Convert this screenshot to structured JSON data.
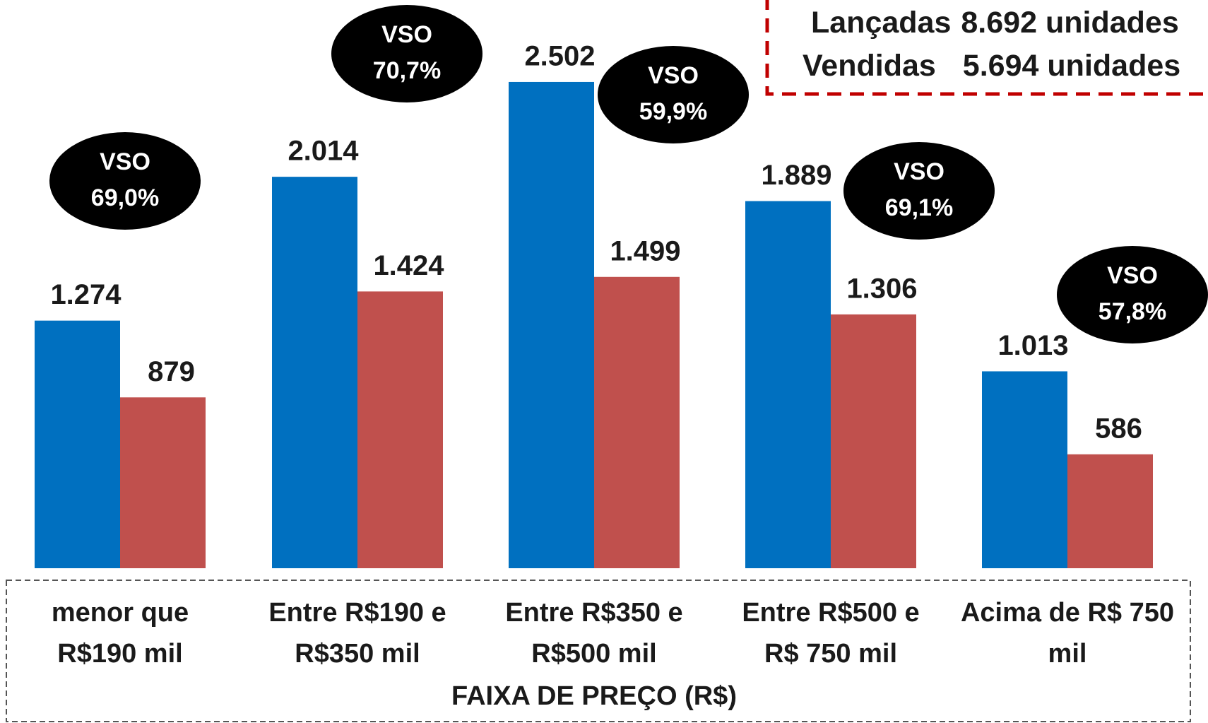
{
  "chart_data": {
    "type": "bar",
    "xlabel": "FAIXA DE PREÇO (R$)",
    "categories": [
      "menor que\nR$190 mil",
      "Entre R$190 e\nR$350 mil",
      "Entre R$350 e\nR$500 mil",
      "Entre R$500 e\nR$ 750 mil",
      "Acima de R$ 750\nmil"
    ],
    "series": [
      {
        "name": "Lançadas",
        "color": "#0070C0",
        "values": [
          1274,
          2014,
          2502,
          1889,
          1013
        ],
        "value_labels": [
          "1.274",
          "2.014",
          "2.502",
          "1.889",
          "1.013"
        ],
        "total": 8692,
        "total_label": "8.692"
      },
      {
        "name": "Vendidas",
        "color": "#C0504D",
        "values": [
          879,
          1424,
          1499,
          1306,
          586
        ],
        "value_labels": [
          "879",
          "1.424",
          "1.499",
          "1.306",
          "586"
        ],
        "total": 5694,
        "total_label": "5.694"
      }
    ],
    "unit_label": "unidades",
    "vso": {
      "label": "VSO",
      "values": [
        69.0,
        70.7,
        59.9,
        69.1,
        57.8
      ],
      "value_labels": [
        "69,0%",
        "70,7%",
        "59,9%",
        "69,1%",
        "57,8%"
      ]
    },
    "ylim": [
      0,
      2700
    ]
  }
}
